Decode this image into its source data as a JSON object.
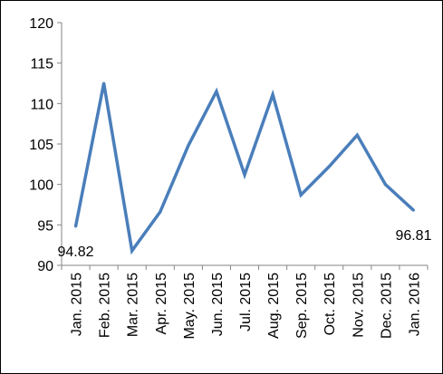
{
  "chart_data": {
    "type": "line",
    "title": "",
    "xlabel": "",
    "ylabel": "",
    "ylim": [
      90,
      120
    ],
    "yticks": [
      90,
      95,
      100,
      105,
      110,
      115,
      120
    ],
    "categories": [
      "Jan. 2015",
      "Feb. 2015",
      "Mar. 2015",
      "Apr. 2015",
      "May. 2015",
      "Jun. 2015",
      "Jul. 2015",
      "Aug. 2015",
      "Sep. 2015",
      "Oct. 2015",
      "Nov. 2015",
      "Dec. 2015",
      "Jan. 2016"
    ],
    "series": [
      {
        "values": [
          94.82,
          112.5,
          91.8,
          96.6,
          104.8,
          111.5,
          101.2,
          111.1,
          98.7,
          102.2,
          106.1,
          100.0,
          96.81
        ],
        "color": "#4a7ebb"
      }
    ],
    "data_labels": [
      {
        "index": 0,
        "text": "94.82"
      },
      {
        "index": 12,
        "text": "96.81"
      }
    ],
    "grid": false,
    "legend": "none"
  }
}
